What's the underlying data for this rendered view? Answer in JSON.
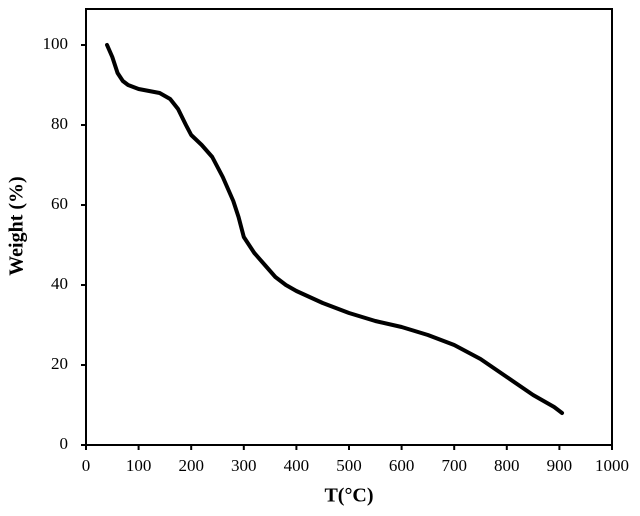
{
  "chart_data": {
    "type": "line",
    "x_label": "T(°C)",
    "y_label": "Weight (%)",
    "x": [
      40,
      50,
      60,
      70,
      80,
      100,
      120,
      140,
      160,
      175,
      190,
      200,
      220,
      240,
      260,
      280,
      290,
      300,
      320,
      340,
      360,
      380,
      400,
      450,
      500,
      550,
      600,
      650,
      700,
      750,
      800,
      850,
      890,
      900,
      905
    ],
    "series": [
      {
        "color": "#000000",
        "values": [
          100,
          97,
          93,
          91,
          90,
          89,
          88.5,
          88,
          86.5,
          84,
          80,
          77.5,
          75,
          72,
          67,
          61,
          57,
          52,
          48,
          45,
          42,
          40,
          38.5,
          35.5,
          33,
          31,
          29.5,
          27.5,
          25,
          21.5,
          17,
          12.5,
          9.5,
          8.5,
          8
        ]
      }
    ],
    "xlim": [
      0,
      1000
    ],
    "ylim": [
      0,
      109
    ],
    "xticks": [
      0,
      100,
      200,
      300,
      400,
      500,
      600,
      700,
      800,
      900,
      1000
    ],
    "yticks": [
      0,
      20,
      40,
      60,
      80,
      100
    ]
  }
}
